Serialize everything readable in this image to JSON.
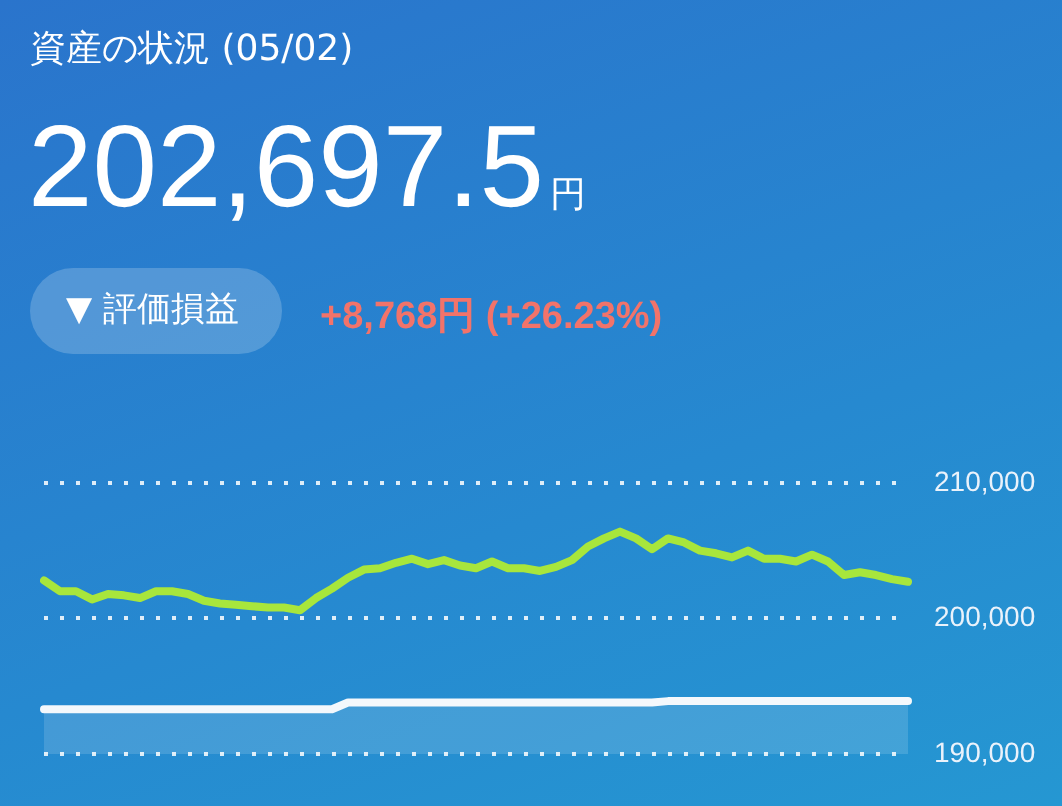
{
  "chart_data": {
    "type": "line",
    "title": "資産の状況 (05/02)",
    "subtitle": "202,697.5円",
    "annotations": [
      "▼ 評価損益",
      "+8,768円 (+26.23%)"
    ],
    "categories": [
      null,
      null,
      null,
      null,
      null,
      null,
      null,
      null,
      null,
      null,
      null,
      null,
      null,
      null,
      null,
      null,
      null,
      null,
      null,
      null,
      null,
      null,
      null,
      null,
      null,
      null,
      null,
      null,
      null,
      null,
      null,
      null,
      null,
      null,
      null,
      null,
      null,
      null,
      null,
      null,
      null,
      null,
      null,
      null,
      null,
      null,
      null,
      null,
      null,
      null,
      null,
      null,
      null,
      null,
      null
    ],
    "series": [
      {
        "type": "area",
        "color": "#f4f8fc",
        "values": [
          193300,
          193300,
          193300,
          193300,
          193300,
          193300,
          193300,
          193300,
          193300,
          193300,
          193300,
          193300,
          193300,
          193300,
          193300,
          193300,
          193300,
          193300,
          193300,
          193800,
          193800,
          193800,
          193800,
          193800,
          193800,
          193800,
          193800,
          193800,
          193800,
          193800,
          193800,
          193800,
          193800,
          193800,
          193800,
          193800,
          193800,
          193800,
          193800,
          193900,
          193900,
          193900,
          193900,
          193900,
          193900,
          193900,
          193900,
          193900,
          193900,
          193900,
          193900,
          193900,
          193900,
          193900,
          193900
        ]
      },
      {
        "type": "line",
        "color": "#a8e63c",
        "values": [
          202800,
          202000,
          202000,
          201400,
          201800,
          201700,
          201500,
          202000,
          202000,
          201800,
          201300,
          201100,
          201000,
          200900,
          200800,
          200800,
          200600,
          201500,
          202200,
          203000,
          203600,
          203700,
          204100,
          204400,
          204000,
          204300,
          203900,
          203700,
          204200,
          203700,
          203700,
          203500,
          203800,
          204300,
          205300,
          205900,
          206400,
          205900,
          205100,
          205900,
          205600,
          205000,
          204800,
          204500,
          205000,
          204400,
          204400,
          204200,
          204700,
          204200,
          203200,
          203400,
          203200,
          202900,
          202700
        ]
      }
    ],
    "ylim": [
      190000,
      210000
    ],
    "yticks": [
      {
        "value": 190000,
        "label": "190,000"
      },
      {
        "value": 200000,
        "label": "200,000"
      },
      {
        "value": 210000,
        "label": "210,000"
      }
    ],
    "grid": "y",
    "legend": false,
    "marker": "none",
    "line_style": "solid",
    "tick_labels": "y"
  }
}
